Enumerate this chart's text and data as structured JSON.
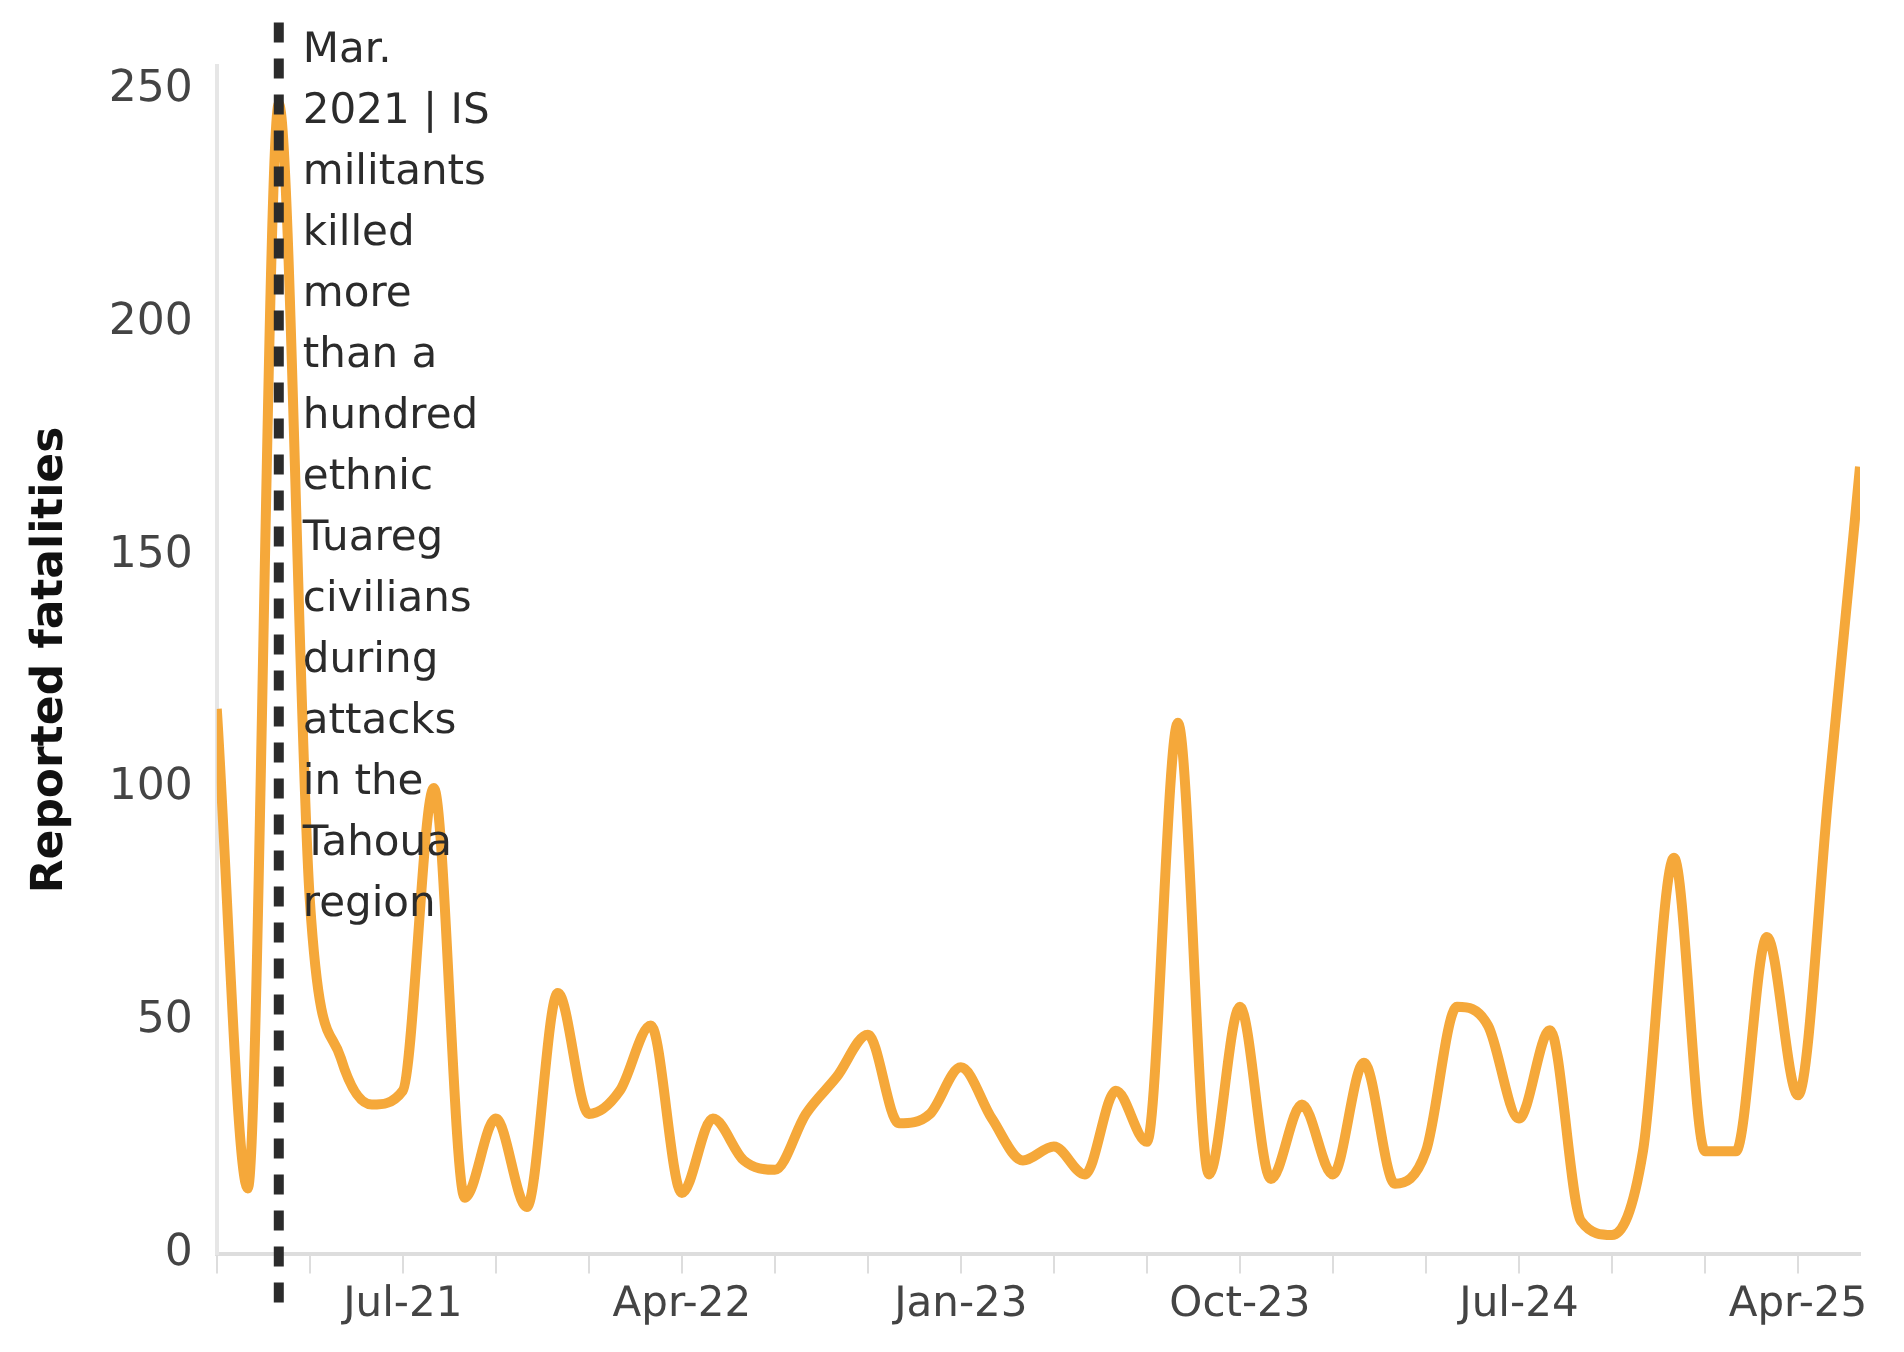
{
  "chart_data": {
    "type": "line",
    "ylabel": "Reported fatalities",
    "x": [
      "2021-01",
      "2021-02",
      "2021-03",
      "2021-04",
      "2021-05",
      "2021-06",
      "2021-07",
      "2021-08",
      "2021-09",
      "2021-10",
      "2021-11",
      "2021-12",
      "2022-01",
      "2022-02",
      "2022-03",
      "2022-04",
      "2022-05",
      "2022-06",
      "2022-07",
      "2022-08",
      "2022-09",
      "2022-10",
      "2022-11",
      "2022-12",
      "2023-01",
      "2023-02",
      "2023-03",
      "2023-04",
      "2023-05",
      "2023-06",
      "2023-07",
      "2023-08",
      "2023-09",
      "2023-10",
      "2023-11",
      "2023-12",
      "2024-01",
      "2024-02",
      "2024-03",
      "2024-04",
      "2024-05",
      "2024-06",
      "2024-07",
      "2024-08",
      "2024-09",
      "2024-10",
      "2024-11",
      "2024-12",
      "2025-01",
      "2025-02",
      "2025-03",
      "2025-04",
      "2025-05",
      "2025-06"
    ],
    "series": [
      {
        "color": "#f5a83a",
        "values": [
          117,
          14,
          247,
          76,
          42,
          32,
          35,
          100,
          12,
          29,
          10,
          56,
          30,
          35,
          49,
          13,
          29,
          20,
          18,
          30,
          38,
          47,
          28,
          30,
          40,
          29,
          20,
          23,
          17,
          35,
          24,
          114,
          17,
          53,
          16,
          32,
          17,
          41,
          15,
          22,
          53,
          49,
          29,
          48,
          7,
          4,
          22,
          85,
          22,
          22,
          68,
          34,
          100,
          169
        ]
      }
    ],
    "xlim": [
      "2021-01",
      "2025-06"
    ],
    "xticks": [
      {
        "value": "2021-01",
        "label": null
      },
      {
        "value": "2021-04",
        "label": null
      },
      {
        "value": "2021-07",
        "label": "Jul-21"
      },
      {
        "value": "2021-10",
        "label": null
      },
      {
        "value": "2022-01",
        "label": null
      },
      {
        "value": "2022-04",
        "label": "Apr-22"
      },
      {
        "value": "2022-07",
        "label": null
      },
      {
        "value": "2022-10",
        "label": null
      },
      {
        "value": "2023-01",
        "label": "Jan-23"
      },
      {
        "value": "2023-04",
        "label": null
      },
      {
        "value": "2023-07",
        "label": null
      },
      {
        "value": "2023-10",
        "label": "Oct-23"
      },
      {
        "value": "2024-01",
        "label": null
      },
      {
        "value": "2024-04",
        "label": null
      },
      {
        "value": "2024-07",
        "label": "Jul-24"
      },
      {
        "value": "2024-10",
        "label": null
      },
      {
        "value": "2025-01",
        "label": null
      },
      {
        "value": "2025-04",
        "label": "Apr-25"
      }
    ],
    "ylim": [
      0,
      255
    ],
    "yticks": [
      0,
      50,
      100,
      150,
      200,
      250
    ],
    "ref_lines": [
      {
        "axis": "x",
        "value": "2021-03",
        "label": "Mar. 2021 | IS militants killed more than a hundred ethnic Tuareg civilians during attacks in the Tahoua region",
        "color": "#2b2b2b",
        "line_style": "dashed"
      }
    ],
    "grid": false,
    "legend": false,
    "marker": "none",
    "line_style": "solid"
  }
}
